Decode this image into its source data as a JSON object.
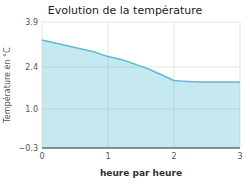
{
  "chart_data": {
    "type": "area",
    "title": "Evolution de la température",
    "x_label": "heure par heure",
    "y_label": "Température en °C",
    "x": [
      0,
      0.1,
      0.2,
      0.3,
      0.4,
      0.5,
      0.6,
      0.7,
      0.8,
      0.9,
      1.0,
      1.1,
      1.2,
      1.3,
      1.4,
      1.5,
      1.6,
      1.7,
      1.8,
      1.9,
      2.0,
      2.1,
      2.2,
      2.3,
      2.4,
      2.5,
      2.6,
      2.7,
      2.8,
      2.9,
      3.0
    ],
    "values": [
      3.3,
      3.25,
      3.2,
      3.15,
      3.1,
      3.05,
      3.0,
      2.95,
      2.9,
      2.82,
      2.75,
      2.7,
      2.65,
      2.58,
      2.5,
      2.42,
      2.35,
      2.25,
      2.15,
      2.05,
      1.95,
      1.93,
      1.92,
      1.91,
      1.9,
      1.9,
      1.9,
      1.9,
      1.9,
      1.9,
      1.9
    ],
    "baseline": -0.3,
    "color": "#5bbcd6",
    "xlim": [
      0,
      3
    ],
    "ylim": [
      -0.3,
      3.9
    ],
    "xticks": [
      0,
      1,
      2,
      3
    ],
    "yticks": [
      {
        "value": -0.3,
        "label": "−0.3"
      },
      {
        "value": 1.0,
        "label": "1.0"
      },
      {
        "value": 2.4,
        "label": "2.4"
      },
      {
        "value": 3.9,
        "label": "3.9"
      }
    ],
    "grid": true
  }
}
